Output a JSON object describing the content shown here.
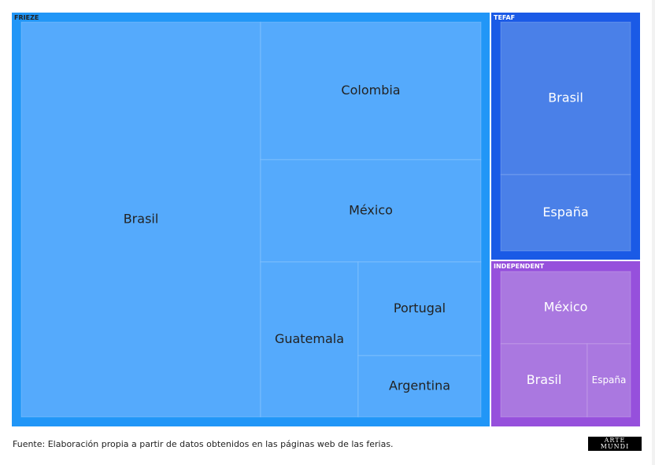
{
  "chart_data": {
    "type": "treemap",
    "groups": [
      {
        "name": "FRIEZE",
        "color": "#2196f7",
        "leaf_color": "#55aafc",
        "label_color": "#222222",
        "leaves": [
          {
            "name": "Brasil",
            "value": 38
          },
          {
            "name": "Colombia",
            "value": 13
          },
          {
            "name": "México",
            "value": 10
          },
          {
            "name": "Guatemala",
            "value": 6
          },
          {
            "name": "Portugal",
            "value": 5
          },
          {
            "name": "Argentina",
            "value": 3
          }
        ]
      },
      {
        "name": "TEFAF",
        "color": "#1a5ae6",
        "leaf_color": "#4a80e8",
        "label_color": "#ffffff",
        "leaves": [
          {
            "name": "Brasil",
            "value": 5
          },
          {
            "name": "España",
            "value": 2
          }
        ]
      },
      {
        "name": "INDEPENDENT",
        "color": "#9650dc",
        "leaf_color": "#aa78e0",
        "label_color": "#ffffff",
        "leaves": [
          {
            "name": "México",
            "value": 2
          },
          {
            "name": "Brasil",
            "value": 1
          },
          {
            "name": "España",
            "value": 1
          }
        ]
      }
    ]
  },
  "footer": {
    "source": "Fuente: Elaboración propia a partir de datos obtenidos en las páginas web de las ferias.",
    "logo_text": "ARTE MUNDI"
  }
}
